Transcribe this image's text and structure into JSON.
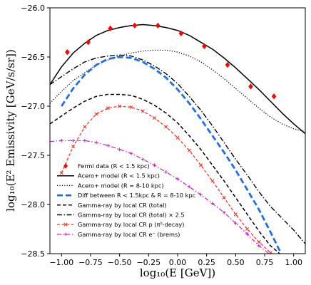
{
  "chart_data": {
    "type": "line",
    "xlabel": "log₁₀(E [GeV])",
    "ylabel": "log₁₀(E² Emissivity [GeV/s/sr])",
    "xlim": [
      -1.1,
      1.1
    ],
    "ylim": [
      -28.5,
      -26.0
    ],
    "xticks": [
      -1.0,
      -0.75,
      -0.5,
      -0.25,
      0.0,
      0.25,
      0.5,
      0.75,
      1.0
    ],
    "xtick_labels": [
      "−1.00",
      "−0.75",
      "−0.50",
      "−0.25",
      "0.00",
      "0.25",
      "0.50",
      "0.75",
      "1.00"
    ],
    "yticks": [
      -28.5,
      -28.0,
      -27.5,
      -27.0,
      -26.5,
      -26.0
    ],
    "ytick_labels": [
      "−28.5",
      "−28.0",
      "−27.5",
      "−27.0",
      "−26.5",
      "−26.0"
    ],
    "grid": false,
    "legend_position": "bottom-left",
    "series": [
      {
        "name": "Fermi data (R < 1.5 kpc)",
        "style": "markers",
        "marker": "diamond",
        "color": "#ff0000",
        "x": [
          -0.95,
          -0.77,
          -0.58,
          -0.37,
          -0.17,
          0.03,
          0.23,
          0.43,
          0.63,
          0.83
        ],
        "y": [
          -26.45,
          -26.35,
          -26.21,
          -26.18,
          -26.18,
          -26.26,
          -26.39,
          -26.58,
          -26.8,
          -26.9
        ]
      },
      {
        "name": "Acero+ model (R < 1.5 kpc)",
        "style": "solid",
        "color": "#000000",
        "x": [
          -1.1,
          -1.0,
          -0.9,
          -0.8,
          -0.7,
          -0.6,
          -0.5,
          -0.4,
          -0.3,
          -0.2,
          -0.1,
          0.0,
          0.1,
          0.2,
          0.3,
          0.4,
          0.5,
          0.6,
          0.7,
          0.8,
          0.9,
          1.0,
          1.1
        ],
        "y": [
          -26.78,
          -26.6,
          -26.46,
          -26.36,
          -26.28,
          -26.23,
          -26.2,
          -26.18,
          -26.17,
          -26.18,
          -26.2,
          -26.23,
          -26.28,
          -26.35,
          -26.42,
          -26.51,
          -26.61,
          -26.72,
          -26.83,
          -26.95,
          -27.07,
          -27.18,
          -27.28
        ]
      },
      {
        "name": "Acero+ model (R = 8-10 kpc)",
        "style": "dotted",
        "color": "#000000",
        "x": [
          -1.1,
          -1.0,
          -0.9,
          -0.8,
          -0.7,
          -0.6,
          -0.5,
          -0.4,
          -0.3,
          -0.2,
          -0.1,
          0.0,
          0.1,
          0.2,
          0.3,
          0.4,
          0.5,
          0.6,
          0.7,
          0.8,
          0.9,
          1.0,
          1.1
        ],
        "y": [
          -26.97,
          -26.85,
          -26.74,
          -26.66,
          -26.58,
          -26.53,
          -26.49,
          -26.46,
          -26.44,
          -26.43,
          -26.43,
          -26.45,
          -26.49,
          -26.55,
          -26.63,
          -26.72,
          -26.82,
          -26.92,
          -27.02,
          -27.11,
          -27.18,
          -27.23,
          -27.26
        ]
      },
      {
        "name": "Diff between R < 1.5kpc & R = 8-10 kpc",
        "style": "dashed-thick",
        "color": "#1f6fe5",
        "x": [
          -1.0,
          -0.9,
          -0.8,
          -0.7,
          -0.6,
          -0.5,
          -0.4,
          -0.3,
          -0.2,
          -0.1,
          0.0,
          0.1,
          0.2,
          0.3,
          0.4,
          0.5,
          0.6,
          0.7,
          0.8,
          0.9
        ],
        "y": [
          -27.0,
          -26.82,
          -26.68,
          -26.58,
          -26.52,
          -26.5,
          -26.51,
          -26.55,
          -26.62,
          -26.71,
          -26.83,
          -26.97,
          -27.13,
          -27.3,
          -27.47,
          -27.65,
          -27.85,
          -28.05,
          -28.28,
          -28.52
        ]
      },
      {
        "name": "Gamma-ray by local CR (total)",
        "style": "dashed",
        "color": "#000000",
        "x": [
          -1.1,
          -1.0,
          -0.9,
          -0.8,
          -0.7,
          -0.6,
          -0.5,
          -0.4,
          -0.3,
          -0.2,
          -0.1,
          0.0,
          0.1,
          0.2,
          0.3,
          0.4,
          0.5,
          0.6,
          0.7,
          0.8,
          0.9,
          0.95
        ],
        "y": [
          -27.18,
          -27.1,
          -27.02,
          -26.95,
          -26.9,
          -26.88,
          -26.88,
          -26.89,
          -26.93,
          -26.99,
          -27.07,
          -27.17,
          -27.3,
          -27.44,
          -27.6,
          -27.76,
          -27.93,
          -28.1,
          -28.27,
          -28.42,
          -28.52,
          -28.55
        ]
      },
      {
        "name": "Gamma-ray by local CR (total) × 2.5",
        "style": "dashdot",
        "color": "#000000",
        "x": [
          -1.1,
          -1.0,
          -0.9,
          -0.8,
          -0.7,
          -0.6,
          -0.5,
          -0.4,
          -0.3,
          -0.2,
          -0.1,
          0.0,
          0.1,
          0.2,
          0.3,
          0.4,
          0.5,
          0.6,
          0.7,
          0.8,
          0.9,
          1.0,
          1.1
        ],
        "y": [
          -26.78,
          -26.7,
          -26.62,
          -26.55,
          -26.51,
          -26.49,
          -26.48,
          -26.49,
          -26.53,
          -26.59,
          -26.67,
          -26.77,
          -26.9,
          -27.04,
          -27.2,
          -27.37,
          -27.54,
          -27.7,
          -27.87,
          -28.02,
          -28.14,
          -28.26,
          -28.4
        ]
      },
      {
        "name": "Gamma-ray by local CR p (π⁰-decay)",
        "style": "dashed-x",
        "color": "#ff2a1a",
        "x": [
          -1.0,
          -0.9,
          -0.8,
          -0.7,
          -0.6,
          -0.5,
          -0.4,
          -0.3,
          -0.2,
          -0.1,
          0.0,
          0.1,
          0.2,
          0.3,
          0.4,
          0.5,
          0.6,
          0.7,
          0.8,
          0.85
        ],
        "y": [
          -27.68,
          -27.41,
          -27.21,
          -27.08,
          -27.02,
          -27.0,
          -27.01,
          -27.05,
          -27.12,
          -27.21,
          -27.32,
          -27.45,
          -27.6,
          -27.76,
          -27.93,
          -28.1,
          -28.25,
          -28.38,
          -28.49,
          -28.52
        ]
      },
      {
        "name": "Gamma-ray by local CR e⁻ (brems)",
        "style": "dashdot-plus",
        "color": "#cc22cc",
        "x": [
          -1.1,
          -1.0,
          -0.9,
          -0.8,
          -0.7,
          -0.6,
          -0.5,
          -0.4,
          -0.3,
          -0.2,
          -0.1,
          0.0,
          0.1,
          0.2,
          0.3,
          0.4,
          0.5,
          0.6,
          0.7,
          0.8,
          0.82
        ],
        "y": [
          -27.36,
          -27.35,
          -27.35,
          -27.35,
          -27.37,
          -27.4,
          -27.44,
          -27.48,
          -27.54,
          -27.6,
          -27.67,
          -27.74,
          -27.82,
          -27.9,
          -27.99,
          -28.08,
          -28.19,
          -28.3,
          -28.42,
          -28.51,
          -28.54
        ]
      }
    ]
  }
}
